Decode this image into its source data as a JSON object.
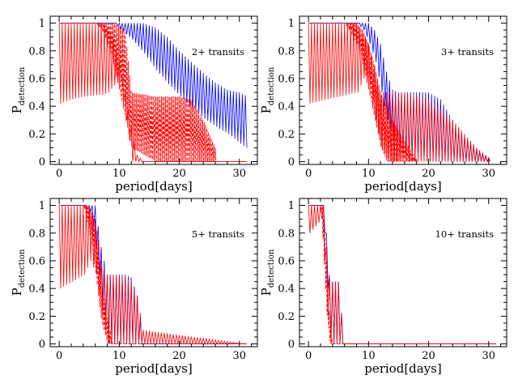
{
  "figure": {
    "colors": {
      "blue": "#0000ff",
      "red": "#ff0000",
      "axis": "#000000"
    }
  },
  "chart_data": [
    {
      "type": "line",
      "annotation": "2+ transits",
      "xlabel": "period[days]",
      "ylabel_main": "P",
      "ylabel_sub": "detection",
      "xlim": [
        -1.5,
        33
      ],
      "ylim": [
        -0.02,
        1.05
      ],
      "xticks": [
        0,
        10,
        20,
        30
      ],
      "yticks": [
        0,
        0.2,
        0.4,
        0.6,
        0.8,
        1
      ],
      "grid": false,
      "series": [
        {
          "color": "#0000ff",
          "style": "solid",
          "envelope_x": [
            0,
            9,
            10,
            12,
            14,
            16,
            18,
            20,
            22,
            24,
            26,
            28,
            30,
            31
          ],
          "envelope_lo": [
            1,
            1,
            0.96,
            0.88,
            0.78,
            0.66,
            0.56,
            0.47,
            0.38,
            0.31,
            0.25,
            0.2,
            0.13,
            0.1
          ],
          "envelope_hi": [
            1,
            1,
            1,
            1,
            1,
            0.97,
            0.9,
            0.8,
            0.72,
            0.64,
            0.57,
            0.52,
            0.5,
            0.48
          ]
        },
        {
          "color": "#ff0000",
          "style": "solid",
          "envelope_x": [
            0,
            2,
            4,
            6,
            7,
            8,
            9,
            10,
            11,
            12,
            13,
            14,
            31
          ],
          "envelope_lo": [
            0.42,
            0.45,
            0.47,
            0.48,
            0.48,
            0.5,
            0.55,
            0.6,
            0.3,
            0,
            0,
            0,
            0
          ],
          "envelope_hi": [
            1,
            1,
            1,
            1,
            1,
            0.97,
            0.9,
            0.72,
            0.5,
            0.25,
            0.05,
            0,
            0
          ]
        },
        {
          "color": "#ff0000",
          "style": "dashed",
          "envelope_x": [
            0,
            6,
            7,
            8,
            9,
            10,
            11,
            12,
            16,
            20,
            22,
            24,
            26
          ],
          "envelope_lo": [
            1,
            1,
            0.95,
            0.85,
            0.7,
            0.5,
            0.3,
            0.1,
            0,
            0,
            0,
            0,
            0
          ],
          "envelope_hi": [
            1,
            1,
            1,
            1,
            1,
            0.98,
            0.95,
            0.5,
            0.47,
            0.47,
            0.45,
            0.3,
            0.1
          ]
        }
      ]
    },
    {
      "type": "line",
      "annotation": "3+ transits",
      "xlabel": "period[days]",
      "ylabel_main": "P",
      "ylabel_sub": "detection",
      "xlim": [
        -1.5,
        33
      ],
      "ylim": [
        -0.02,
        1.05
      ],
      "xticks": [
        0,
        10,
        20,
        30
      ],
      "yticks": [
        0,
        0.2,
        0.4,
        0.6,
        0.8,
        1
      ],
      "grid": false,
      "series": [
        {
          "color": "#0000ff",
          "style": "solid",
          "envelope_x": [
            0,
            8,
            9,
            10,
            11,
            12,
            13,
            14,
            15,
            16,
            18,
            20,
            22,
            24,
            26,
            28,
            30
          ],
          "envelope_lo": [
            1,
            1,
            0.95,
            0.85,
            0.72,
            0.5,
            0.3,
            0.15,
            0.08,
            0.04,
            0.02,
            0,
            0,
            0,
            0,
            0,
            0
          ],
          "envelope_hi": [
            1,
            1,
            1,
            1,
            0.95,
            0.85,
            0.65,
            0.52,
            0.5,
            0.5,
            0.5,
            0.5,
            0.45,
            0.3,
            0.18,
            0.08,
            0.02
          ]
        },
        {
          "color": "#ff0000",
          "style": "solid",
          "envelope_x": [
            0,
            3,
            6,
            8,
            9,
            10,
            11,
            12,
            13,
            14,
            16,
            18,
            20,
            22,
            24,
            26,
            28,
            30
          ],
          "envelope_lo": [
            0.42,
            0.45,
            0.48,
            0.5,
            0.6,
            0.55,
            0.3,
            0.1,
            0,
            0,
            0,
            0,
            0,
            0,
            0,
            0,
            0,
            0
          ],
          "envelope_hi": [
            1,
            1,
            1,
            1,
            0.95,
            0.85,
            0.7,
            0.5,
            0.5,
            0.5,
            0.5,
            0.48,
            0.45,
            0.38,
            0.3,
            0.2,
            0.1,
            0.03
          ]
        },
        {
          "color": "#ff0000",
          "style": "dashed",
          "envelope_x": [
            0,
            6,
            8,
            9,
            10,
            11,
            12,
            13,
            14,
            16,
            18
          ],
          "envelope_lo": [
            1,
            1,
            0.85,
            0.7,
            0.5,
            0.3,
            0.1,
            0,
            0,
            0,
            0
          ],
          "envelope_hi": [
            1,
            1,
            1,
            0.95,
            0.85,
            0.7,
            0.5,
            0.4,
            0.3,
            0.15,
            0.02
          ]
        }
      ]
    },
    {
      "type": "line",
      "annotation": "5+ transits",
      "xlabel": "period[days]",
      "ylabel_main": "P",
      "ylabel_sub": "detection",
      "xlim": [
        -1.5,
        33
      ],
      "ylim": [
        -0.02,
        1.05
      ],
      "xticks": [
        0,
        10,
        20,
        30
      ],
      "yticks": [
        0,
        0.2,
        0.4,
        0.6,
        0.8,
        1
      ],
      "grid": false,
      "series": [
        {
          "color": "#0000ff",
          "style": "solid",
          "envelope_x": [
            0,
            4,
            5,
            6,
            7,
            8,
            9,
            10,
            11,
            12,
            13,
            14,
            31
          ],
          "envelope_lo": [
            1,
            1,
            0.95,
            0.7,
            0.3,
            0.05,
            0,
            0,
            0,
            0,
            0,
            0,
            0
          ],
          "envelope_hi": [
            1,
            1,
            1,
            1,
            0.7,
            0.5,
            0.5,
            0.5,
            0.5,
            0.48,
            0.35,
            0,
            0
          ]
        },
        {
          "color": "#ff0000",
          "style": "solid",
          "envelope_x": [
            0,
            2,
            4,
            5,
            6,
            7,
            8,
            9,
            10,
            11,
            12,
            13,
            14,
            31
          ],
          "envelope_lo": [
            0.4,
            0.45,
            0.5,
            0.6,
            0.5,
            0.2,
            0,
            0,
            0,
            0,
            0,
            0,
            0,
            0
          ],
          "envelope_hi": [
            1,
            1,
            1,
            1,
            0.9,
            0.6,
            0.5,
            0.5,
            0.5,
            0.48,
            0.45,
            0.35,
            0.1,
            0
          ]
        },
        {
          "color": "#ff0000",
          "style": "dashed",
          "envelope_x": [
            0,
            4,
            5,
            6,
            7,
            8,
            9,
            31
          ],
          "envelope_lo": [
            1,
            1,
            0.8,
            0.5,
            0.15,
            0,
            0,
            0
          ],
          "envelope_hi": [
            1,
            1,
            1,
            0.9,
            0.5,
            0.2,
            0,
            0
          ]
        }
      ]
    },
    {
      "type": "line",
      "annotation": "10+ transits",
      "xlabel": "period[days]",
      "ylabel_main": "P",
      "ylabel_sub": "detection",
      "xlim": [
        -1.5,
        33
      ],
      "ylim": [
        -0.02,
        1.05
      ],
      "xticks": [
        0,
        10,
        20,
        30
      ],
      "yticks": [
        0,
        0.2,
        0.4,
        0.6,
        0.8,
        1
      ],
      "grid": false,
      "series": [
        {
          "color": "#0000ff",
          "style": "solid",
          "envelope_x": [
            0,
            2,
            2.5,
            3,
            3.5,
            4,
            5,
            6,
            31
          ],
          "envelope_lo": [
            1,
            1,
            0.8,
            0.4,
            0.05,
            0,
            0,
            0,
            0
          ],
          "envelope_hi": [
            1,
            1,
            1,
            0.8,
            0.5,
            0.45,
            0.45,
            0,
            0
          ]
        },
        {
          "color": "#ff0000",
          "style": "solid",
          "envelope_x": [
            0,
            1,
            2,
            2.5,
            3,
            3.5,
            4,
            5,
            6,
            31
          ],
          "envelope_lo": [
            0.8,
            0.85,
            0.9,
            0.6,
            0.2,
            0,
            0,
            0,
            0,
            0
          ],
          "envelope_hi": [
            1,
            1,
            1,
            1,
            0.7,
            0.5,
            0.45,
            0.45,
            0,
            0
          ]
        },
        {
          "color": "#ff0000",
          "style": "dashed",
          "envelope_x": [
            0,
            2,
            2.5,
            3,
            3.5,
            4,
            31
          ],
          "envelope_lo": [
            1,
            1,
            0.6,
            0.2,
            0,
            0,
            0
          ],
          "envelope_hi": [
            1,
            1,
            1,
            0.6,
            0.2,
            0,
            0
          ]
        }
      ]
    }
  ]
}
